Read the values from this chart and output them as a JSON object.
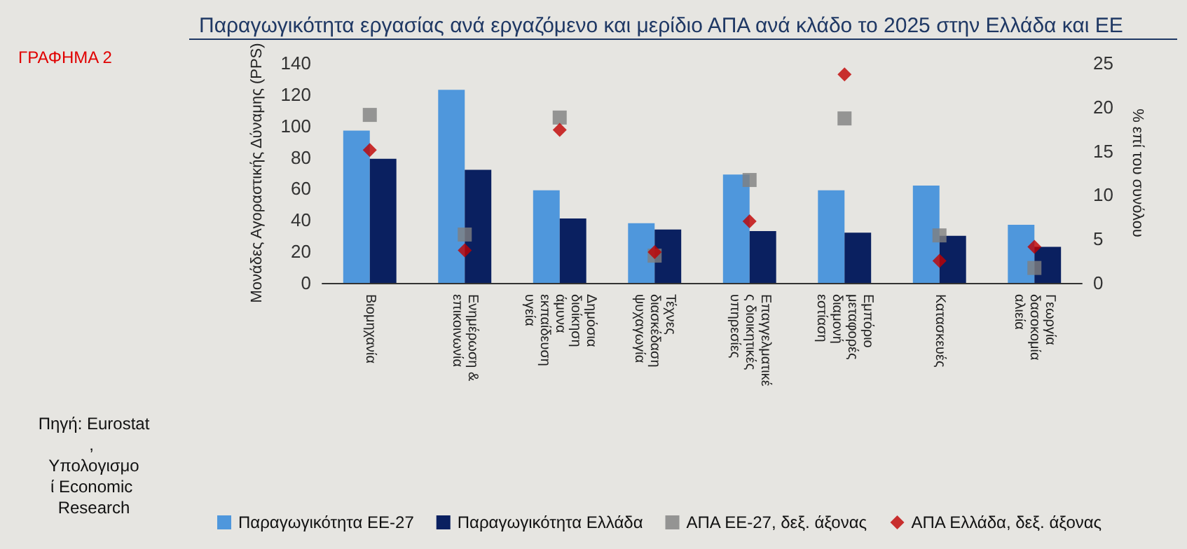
{
  "chart_data": {
    "type": "bar",
    "title": "Παραγωγικότητα εργασίας ανά εργαζόμενο και μερίδιο ΑΠΑ ανά κλάδο το 2025 στην Ελλάδα και ΕΕ",
    "ylabel": "Μονάδες Αγοραστικής Δύναμης (PPS)",
    "y2label": "% επί του συνόλου",
    "annotations": [
      "ΓΡΑΦΗΜΑ 2",
      "Πηγή: Eurostat, Υπολογισμοί Economic Research"
    ],
    "categories": [
      "Βιομηχανία",
      "Ενημέρωση & επικοινωνία",
      "Δημόσια διοίκηση άμυνα εκπαίδευση υγεία",
      "Τέχνες διασκέδαση ψυχαγωγία",
      "Επαγγελματικές διοικητικές υπηρεσίες",
      "Εμπόριο μεταφορές διαμονή εστίαση",
      "Κατασκευές",
      "Γεωργία δασοκομία αλιεία"
    ],
    "series": [
      {
        "name": "Παραγωγικότητα ΕΕ-27",
        "color": "#4f97dc",
        "values": [
          97,
          123,
          59,
          38,
          69,
          59,
          62,
          37
        ]
      },
      {
        "name": "Παραγωγικότητα Ελλάδα",
        "color": "#0a2060",
        "values": [
          79,
          72,
          41,
          34,
          33,
          32,
          30,
          23
        ]
      },
      {
        "name": "ΑΠΑ ΕΕ-27, δεξ. άξονας",
        "type": "scatter",
        "axis": "y2",
        "marker": "square",
        "color": "#808080",
        "values": [
          19.1,
          5.5,
          18.8,
          3.1,
          11.7,
          18.7,
          5.4,
          1.7
        ]
      },
      {
        "name": "ΑΠΑ Ελλάδα, δεξ. άξονας",
        "type": "scatter",
        "axis": "y2",
        "marker": "diamond",
        "color": "#c00000",
        "values": [
          15.1,
          3.7,
          17.4,
          3.5,
          7.0,
          23.7,
          2.5,
          4.1
        ]
      }
    ],
    "ylim": [
      0,
      140
    ],
    "yticks": [
      0,
      20,
      40,
      60,
      80,
      100,
      120,
      140
    ],
    "y2lim": [
      0,
      25
    ],
    "y2ticks": [
      0,
      5,
      10,
      15,
      20,
      25
    ],
    "grid": false,
    "legend": "bottom"
  }
}
